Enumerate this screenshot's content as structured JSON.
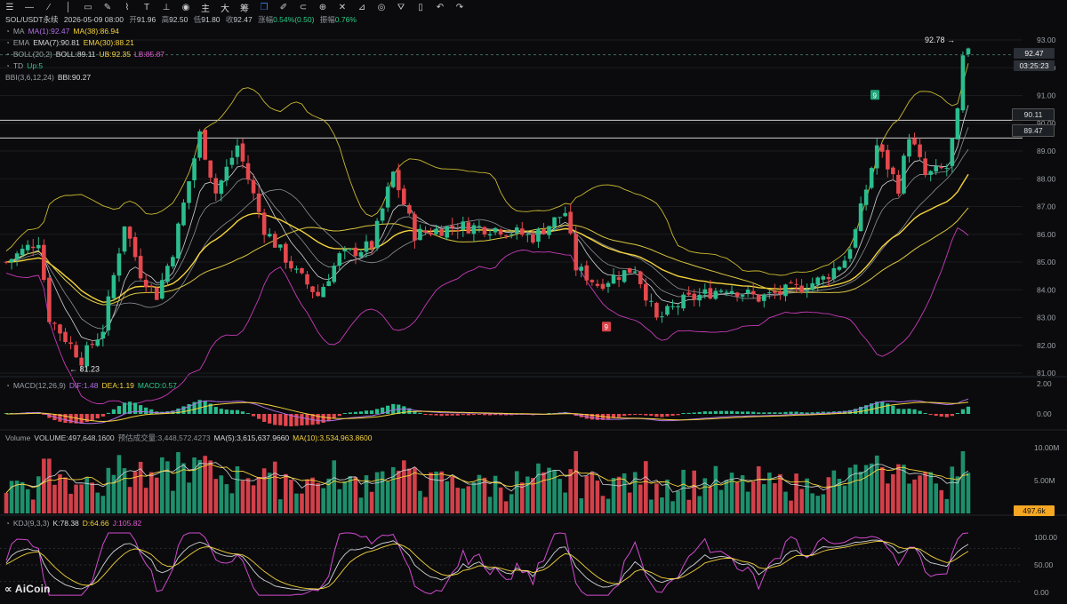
{
  "toolbar": {
    "icons": [
      "menu-icon",
      "hline-icon",
      "ray-icon",
      "vline-icon",
      "rect-icon",
      "pencil-icon",
      "path-icon",
      "text-icon",
      "measure-icon",
      "eye-icon"
    ],
    "cn_buttons": [
      "主",
      "大",
      "筹"
    ],
    "icons2": [
      "layers-icon",
      "brush-icon",
      "magnet-icon",
      "zoom-icon",
      "cross-icon",
      "ruler-icon",
      "mask-icon",
      "filter-icon",
      "trash-icon",
      "undo-icon",
      "redo-icon"
    ]
  },
  "header": {
    "symbol": "SOL/USDT永续",
    "time": "2026-05-09 08:00",
    "open_label": "开",
    "open": "91.96",
    "high_label": "高",
    "high": "92.50",
    "low_label": "低",
    "low": "91.80",
    "close_label": "收",
    "close": "92.47",
    "change_label": "涨幅",
    "change": "0.54%(0.50)",
    "amp_label": "振幅",
    "amp": "0.76%"
  },
  "legend": {
    "ma": {
      "name": "MA",
      "v1": "MA(1):92.47",
      "v2": "MA(38):86.94"
    },
    "ema": {
      "name": "EMA",
      "v1": "EMA(7):90.81",
      "v2": "EMA(30):88.21"
    },
    "boll": {
      "name": "BOLL(20,2)",
      "mid": "BOLL:89.11",
      "ub": "UB:92.35",
      "lb": "LB:85.87"
    },
    "td": {
      "name": "TD",
      "v": "Up:5"
    },
    "bbi": {
      "name": "BBI(3,6,12,24)",
      "v": "BBI:90.27"
    }
  },
  "macd_legend": {
    "name": "MACD(12,26,9)",
    "dif": "DIF:1.48",
    "dea": "DEA:1.19",
    "macd": "MACD:0.57"
  },
  "vol_legend": {
    "name": "Volume",
    "vol": "VOLUME:497,648.1600",
    "est": "预估成交量:3,448,572.4273",
    "ma5": "MA(5):3,615,637.9660",
    "ma10": "MA(10):3,534,963.8600"
  },
  "kdj_legend": {
    "name": "KDJ(9,3,3)",
    "k": "K:78.38",
    "d": "D:64.66",
    "j": "J:105.82"
  },
  "price_axis": [
    "93.00",
    "92.00",
    "91.00",
    "90.00",
    "89.00",
    "88.00",
    "87.00",
    "86.00",
    "85.00",
    "84.00",
    "83.00",
    "82.00",
    "81.00"
  ],
  "macd_axis": [
    "2.00",
    "0.00"
  ],
  "vol_axis": [
    "10.00M",
    "5.00M"
  ],
  "kdj_axis": [
    "100.00",
    "50.00",
    "0.00"
  ],
  "price_tags": {
    "last": "92.47",
    "countdown": "03:25:23",
    "h1": "90.11",
    "h2": "89.47",
    "vol": "497.6k"
  },
  "annotations": {
    "max": "92.78 →",
    "min": "← 81.23",
    "td_up": "9",
    "td_down": "9"
  },
  "logo": "AiCoin",
  "colors": {
    "up": "#2bbd8f",
    "down": "#e5484d",
    "bg": "#0b0b0d",
    "accent": "#f5d33c"
  }
}
